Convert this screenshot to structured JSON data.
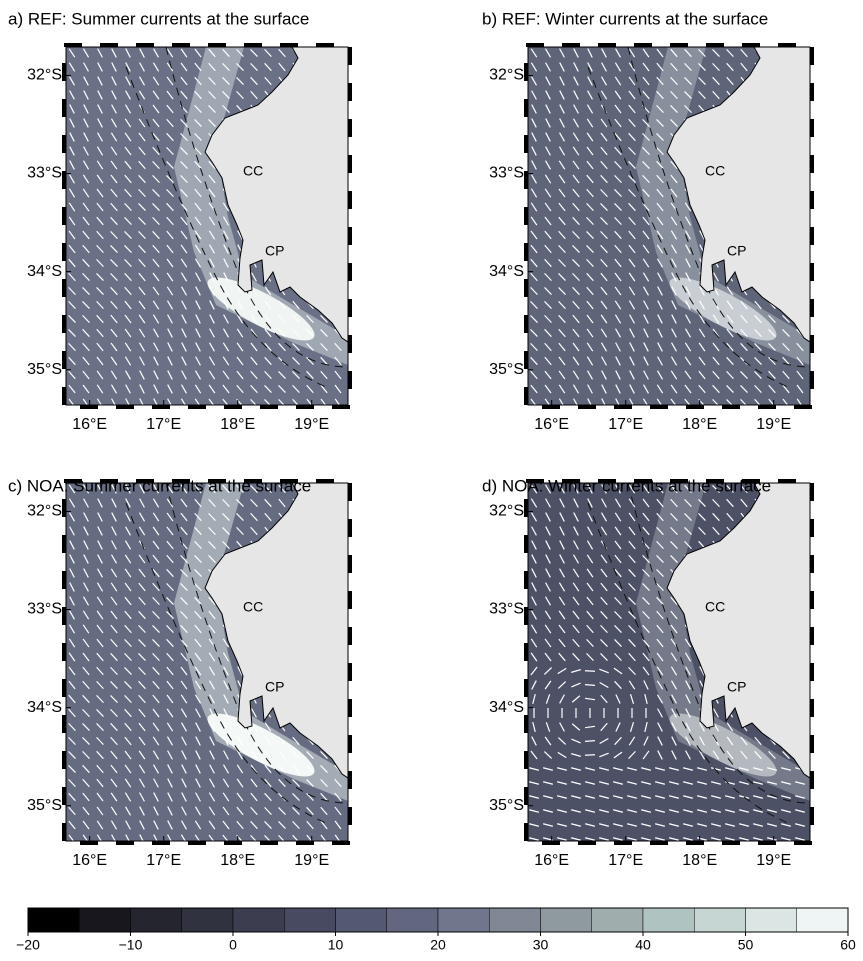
{
  "panels": [
    {
      "title": "a) REF: Summer currents at the surface",
      "xlim": [
        15.68,
        19.49
      ],
      "ylim": [
        -35.36,
        -31.71
      ],
      "xticks": [
        {
          "value": 16,
          "label": "16°E"
        },
        {
          "value": 17,
          "label": "17°E"
        },
        {
          "value": 18,
          "label": "18°E"
        },
        {
          "value": 19,
          "label": "19°E"
        }
      ],
      "yticks": [
        {
          "value": -32,
          "label": "32°S"
        },
        {
          "value": -33,
          "label": "33°S"
        },
        {
          "value": -34,
          "label": "34°S"
        },
        {
          "value": -35,
          "label": "35°S"
        }
      ],
      "annotations": [
        "CC",
        "CP"
      ]
    },
    {
      "title": "b) REF: Winter currents at the surface",
      "xlim": [
        15.68,
        19.49
      ],
      "ylim": [
        -35.36,
        -31.71
      ],
      "xticks": [
        {
          "value": 16,
          "label": "16°E"
        },
        {
          "value": 17,
          "label": "17°E"
        },
        {
          "value": 18,
          "label": "18°E"
        },
        {
          "value": 19,
          "label": "19°E"
        }
      ],
      "yticks": [
        {
          "value": -32,
          "label": "32°S"
        },
        {
          "value": -33,
          "label": "33°S"
        },
        {
          "value": -34,
          "label": "34°S"
        },
        {
          "value": -35,
          "label": "35°S"
        }
      ],
      "annotations": [
        "CC",
        "CP"
      ]
    },
    {
      "title": "c) NOA: Summer currents at the surface",
      "xlim": [
        15.68,
        19.49
      ],
      "ylim": [
        -35.36,
        -31.71
      ],
      "xticks": [
        {
          "value": 16,
          "label": "16°E"
        },
        {
          "value": 17,
          "label": "17°E"
        },
        {
          "value": 18,
          "label": "18°E"
        },
        {
          "value": 19,
          "label": "19°E"
        }
      ],
      "yticks": [
        {
          "value": -32,
          "label": "32°S"
        },
        {
          "value": -33,
          "label": "33°S"
        },
        {
          "value": -34,
          "label": "34°S"
        },
        {
          "value": -35,
          "label": "35°S"
        }
      ],
      "annotations": [
        "CC",
        "CP"
      ]
    },
    {
      "title": "d) NOA: Winter currents at the surface",
      "xlim": [
        15.68,
        19.49
      ],
      "ylim": [
        -35.36,
        -31.71
      ],
      "xticks": [
        {
          "value": 16,
          "label": "16°E"
        },
        {
          "value": 17,
          "label": "17°E"
        },
        {
          "value": 18,
          "label": "18°E"
        },
        {
          "value": 19,
          "label": "19°E"
        }
      ],
      "yticks": [
        {
          "value": -32,
          "label": "32°S"
        },
        {
          "value": -33,
          "label": "33°S"
        },
        {
          "value": -34,
          "label": "34°S"
        },
        {
          "value": -35,
          "label": "35°S"
        }
      ],
      "annotations": [
        "CC",
        "CP"
      ]
    }
  ],
  "colorbar": {
    "bins": [
      -20,
      -15,
      -10,
      -5,
      0,
      5,
      10,
      15,
      20,
      25,
      30,
      35,
      40,
      45,
      50,
      55,
      60
    ],
    "colors": [
      "#000000",
      "#17171d",
      "#25252f",
      "#31323f",
      "#3c3e50",
      "#474a60",
      "#545870",
      "#62677f",
      "#70778d",
      "#7f8894",
      "#8e9a9f",
      "#9fadac",
      "#afc4c0",
      "#c6d6d3",
      "#dbe6e4",
      "#eef5f4"
    ],
    "ticks": [
      {
        "value": -20,
        "label": "−20"
      },
      {
        "value": -10,
        "label": "−10"
      },
      0,
      10,
      20,
      30,
      40,
      50,
      60
    ]
  }
}
